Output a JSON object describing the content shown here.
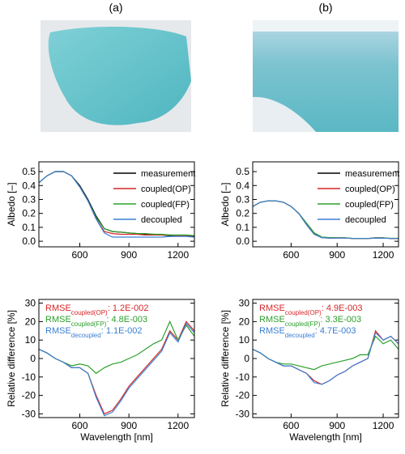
{
  "panels": [
    "(a)",
    "(b)"
  ],
  "chart_data": [
    {
      "type": "line",
      "ylabel": "Albedo [–]",
      "x": [
        350,
        400,
        450,
        500,
        550,
        600,
        650,
        700,
        750,
        800,
        850,
        900,
        950,
        1000,
        1050,
        1100,
        1150,
        1200,
        1250,
        1300
      ],
      "xlim": [
        350,
        1300
      ],
      "xticks": [
        600,
        900,
        1200
      ],
      "ylim": [
        -0.04,
        0.57
      ],
      "yticks": [
        {
          "value": 0,
          "label": "0.0"
        },
        0.1,
        0.2,
        0.3,
        0.4,
        0.5
      ],
      "legend": "upper right",
      "series": [
        {
          "name": "measurement",
          "color": "#000000",
          "values": [
            0.42,
            0.47,
            0.5,
            0.5,
            0.47,
            0.4,
            0.3,
            0.18,
            0.09,
            0.07,
            0.065,
            0.06,
            0.055,
            0.05,
            0.05,
            0.045,
            0.04,
            0.04,
            0.04,
            0.035
          ]
        },
        {
          "name": "coupled(OP)",
          "color": "#d62728",
          "values": [
            0.42,
            0.47,
            0.5,
            0.5,
            0.47,
            0.39,
            0.29,
            0.16,
            0.07,
            0.055,
            0.05,
            0.05,
            0.05,
            0.045,
            0.045,
            0.045,
            0.045,
            0.04,
            0.04,
            0.04
          ]
        },
        {
          "name": "coupled(FP)",
          "color": "#2ca02c",
          "values": [
            0.42,
            0.47,
            0.5,
            0.5,
            0.47,
            0.39,
            0.29,
            0.17,
            0.09,
            0.07,
            0.065,
            0.06,
            0.055,
            0.055,
            0.05,
            0.05,
            0.045,
            0.045,
            0.045,
            0.04
          ]
        },
        {
          "name": "decoupled",
          "color": "#3b7fd4",
          "values": [
            0.42,
            0.47,
            0.5,
            0.5,
            0.47,
            0.39,
            0.29,
            0.16,
            0.06,
            0.03,
            0.03,
            0.03,
            0.03,
            0.03,
            0.03,
            0.03,
            0.035,
            0.035,
            0.035,
            0.03
          ]
        }
      ]
    },
    {
      "type": "line",
      "ylabel": "Albedo [–]",
      "x": [
        350,
        400,
        450,
        500,
        550,
        600,
        650,
        700,
        750,
        800,
        850,
        900,
        950,
        1000,
        1050,
        1100,
        1150,
        1200,
        1250,
        1300
      ],
      "xlim": [
        350,
        1300
      ],
      "xticks": [
        600,
        900,
        1200
      ],
      "ylim": [
        -0.04,
        0.57
      ],
      "yticks": [
        {
          "value": 0,
          "label": "0.0"
        },
        0.1,
        0.2,
        0.3,
        0.4,
        0.5
      ],
      "legend": "upper right",
      "series": [
        {
          "name": "measurement",
          "color": "#000000",
          "values": [
            0.25,
            0.28,
            0.29,
            0.29,
            0.28,
            0.25,
            0.2,
            0.13,
            0.06,
            0.03,
            0.025,
            0.025,
            0.025,
            0.02,
            0.02,
            0.02,
            0.025,
            0.025,
            0.02,
            0.02
          ]
        },
        {
          "name": "coupled(OP)",
          "color": "#d62728",
          "values": [
            0.25,
            0.28,
            0.29,
            0.29,
            0.28,
            0.25,
            0.2,
            0.12,
            0.05,
            0.026,
            0.022,
            0.023,
            0.023,
            0.02,
            0.02,
            0.02,
            0.022,
            0.023,
            0.02,
            0.02
          ]
        },
        {
          "name": "coupled(FP)",
          "color": "#2ca02c",
          "values": [
            0.25,
            0.28,
            0.29,
            0.29,
            0.28,
            0.25,
            0.2,
            0.13,
            0.06,
            0.03,
            0.026,
            0.025,
            0.025,
            0.021,
            0.02,
            0.02,
            0.023,
            0.024,
            0.021,
            0.021
          ]
        },
        {
          "name": "decoupled",
          "color": "#3b7fd4",
          "values": [
            0.25,
            0.28,
            0.29,
            0.29,
            0.28,
            0.25,
            0.2,
            0.12,
            0.05,
            0.026,
            0.022,
            0.023,
            0.023,
            0.02,
            0.02,
            0.02,
            0.022,
            0.023,
            0.02,
            0.02
          ]
        }
      ]
    },
    {
      "type": "line",
      "ylabel": "Relative difference [%]",
      "xlabel": "Wavelength [nm]",
      "x": [
        350,
        400,
        450,
        500,
        550,
        600,
        650,
        700,
        750,
        800,
        850,
        900,
        950,
        1000,
        1050,
        1100,
        1150,
        1200,
        1250,
        1300
      ],
      "xlim": [
        350,
        1300
      ],
      "xticks": [
        600,
        900,
        1200
      ],
      "ylim": [
        -32,
        32
      ],
      "yticks": [
        -30,
        -20,
        -10,
        0,
        10,
        20,
        30
      ],
      "annotations": [
        {
          "text": "RMSE",
          "sub": "coupled(OP)",
          "value": ": 1.2E-002",
          "color": "#d62728"
        },
        {
          "text": "RMSE",
          "sub": "coupled(FP)",
          "value": ": 4.8E-003",
          "color": "#2ca02c"
        },
        {
          "text": "RMSE",
          "sub": "decoupled",
          "value": ": 1.1E-002",
          "color": "#3b7fd4"
        }
      ],
      "series": [
        {
          "color": "#d62728",
          "values": [
            5,
            3,
            0,
            -2,
            -5,
            -5,
            -8,
            -20,
            -30,
            -28,
            -22,
            -15,
            -10,
            -5,
            0,
            5,
            15,
            10,
            20,
            15
          ]
        },
        {
          "color": "#2ca02c",
          "values": [
            5,
            3,
            0,
            -2,
            -4,
            -3,
            -4,
            -8,
            -5,
            -3,
            -2,
            0,
            2,
            5,
            8,
            10,
            20,
            10,
            18,
            12
          ]
        },
        {
          "color": "#3b7fd4",
          "values": [
            5,
            3,
            0,
            -2,
            -5,
            -5,
            -8,
            -21,
            -31,
            -29,
            -23,
            -16,
            -11,
            -6,
            -1,
            4,
            14,
            9,
            19,
            14
          ]
        }
      ]
    },
    {
      "type": "line",
      "ylabel": "Relative difference [%]",
      "xlabel": "Wavelength [nm]",
      "x": [
        350,
        400,
        450,
        500,
        550,
        600,
        650,
        700,
        750,
        800,
        850,
        900,
        950,
        1000,
        1050,
        1100,
        1150,
        1200,
        1250,
        1300
      ],
      "xlim": [
        350,
        1300
      ],
      "xticks": [
        600,
        900,
        1200
      ],
      "ylim": [
        -32,
        32
      ],
      "yticks": [
        -30,
        -20,
        -10,
        0,
        10,
        20,
        30
      ],
      "annotations": [
        {
          "text": "RMSE",
          "sub": "coupled(OP)",
          "value": ": 4.9E-003",
          "color": "#d62728"
        },
        {
          "text": "RMSE",
          "sub": "coupled(FP)",
          "value": ": 3.3E-003",
          "color": "#2ca02c"
        },
        {
          "text": "RMSE",
          "sub": "decoupled",
          "value": ": 4.7E-003",
          "color": "#3b7fd4"
        }
      ],
      "series": [
        {
          "color": "#d62728",
          "values": [
            5,
            3,
            0,
            -2,
            -4,
            -4,
            -6,
            -8,
            -12,
            -14,
            -12,
            -9,
            -7,
            -4,
            -2,
            0,
            15,
            10,
            12,
            8
          ]
        },
        {
          "color": "#2ca02c",
          "values": [
            5,
            3,
            0,
            -2,
            -3,
            -3,
            -4,
            -5,
            -6,
            -4,
            -3,
            -2,
            -1,
            0,
            2,
            2,
            12,
            8,
            10,
            5
          ]
        },
        {
          "color": "#3b7fd4",
          "values": [
            5,
            3,
            0,
            -2,
            -4,
            -4,
            -6,
            -8,
            -13,
            -14,
            -12,
            -9,
            -7,
            -4,
            -2,
            0,
            14,
            10,
            12,
            8
          ]
        }
      ]
    }
  ]
}
